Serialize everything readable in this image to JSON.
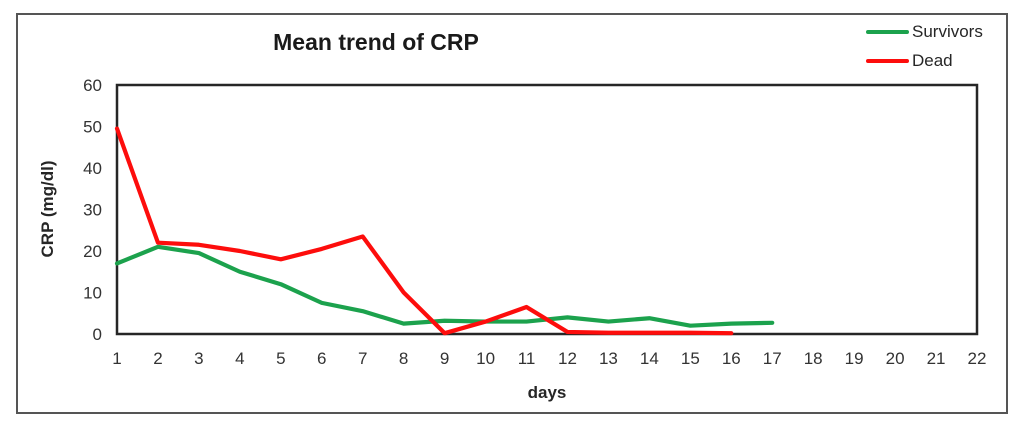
{
  "chart_data": {
    "type": "line",
    "title": "Mean trend of CRP",
    "xlabel": "days",
    "ylabel": "CRP (mg/dl)",
    "xlim": [
      1,
      22
    ],
    "ylim": [
      0,
      60
    ],
    "x_ticks": [
      1,
      2,
      3,
      4,
      5,
      6,
      7,
      8,
      9,
      10,
      11,
      12,
      13,
      14,
      15,
      16,
      17,
      18,
      19,
      20,
      21,
      22
    ],
    "y_ticks": [
      0,
      10,
      20,
      30,
      40,
      50,
      60
    ],
    "grid": false,
    "legend_position": "top-right",
    "series": [
      {
        "name": "Survivors",
        "color": "#1ca24d",
        "x": [
          1,
          2,
          3,
          4,
          5,
          6,
          7,
          8,
          9,
          10,
          11,
          12,
          13,
          14,
          15,
          16,
          17
        ],
        "values": [
          17,
          21,
          19.5,
          15,
          12,
          7.5,
          5.5,
          2.5,
          3.2,
          3,
          3,
          4,
          3,
          3.8,
          2,
          2.5,
          2.7
        ]
      },
      {
        "name": "Dead",
        "color": "#fd0d0c",
        "x": [
          1,
          2,
          3,
          4,
          5,
          6,
          7,
          8,
          9,
          10,
          11,
          12,
          13,
          14,
          15,
          16
        ],
        "values": [
          49.5,
          22,
          21.5,
          20,
          18,
          20.5,
          23.5,
          10,
          0.2,
          3,
          6.5,
          0.5,
          0.3,
          0.3,
          0.3,
          0.2
        ]
      }
    ]
  }
}
